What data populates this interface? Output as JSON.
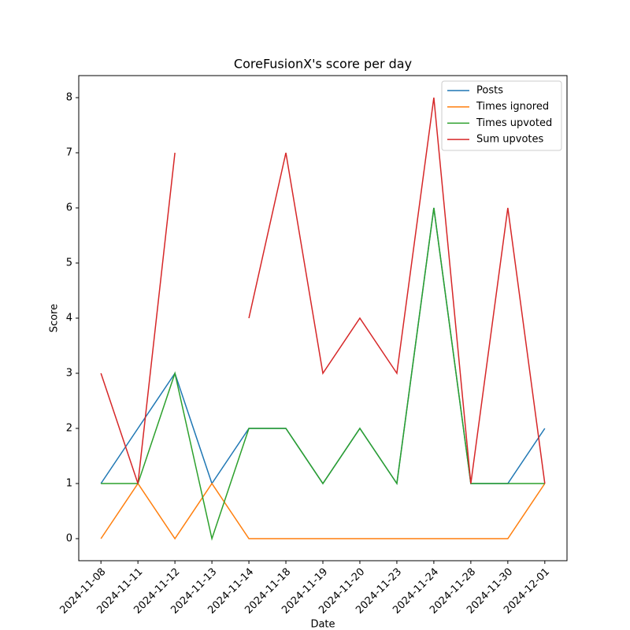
{
  "chart_data": {
    "type": "line",
    "title": "CoreFusionX's score per day",
    "x_label": "Date",
    "y_label": "Score",
    "categories": [
      "2024-11-08",
      "2024-11-11",
      "2024-11-12",
      "2024-11-13",
      "2024-11-14",
      "2024-11-18",
      "2024-11-19",
      "2024-11-20",
      "2024-11-23",
      "2024-11-24",
      "2024-11-28",
      "2024-11-30",
      "2024-12-01"
    ],
    "series": [
      {
        "name": "Posts",
        "color": "#1f77b4",
        "values": [
          1,
          2,
          3,
          1,
          2,
          2,
          1,
          2,
          1,
          6,
          1,
          1,
          2
        ]
      },
      {
        "name": "Times ignored",
        "color": "#ff7f0e",
        "values": [
          0,
          1,
          0,
          1,
          0,
          0,
          0,
          0,
          0,
          0,
          0,
          0,
          1
        ]
      },
      {
        "name": "Times upvoted",
        "color": "#2ca02c",
        "values": [
          1,
          1,
          3,
          0,
          2,
          2,
          1,
          2,
          1,
          6,
          1,
          1,
          1
        ]
      },
      {
        "name": "Sum upvotes",
        "color": "#d62728",
        "values": [
          3,
          1,
          7,
          null,
          4,
          7,
          3,
          4,
          3,
          8,
          1,
          6,
          1
        ]
      }
    ],
    "ylim": [
      -0.4,
      8.4
    ],
    "yticks": [
      0,
      1,
      2,
      3,
      4,
      5,
      6,
      7,
      8
    ],
    "legend": "upper right",
    "grid": false
  }
}
